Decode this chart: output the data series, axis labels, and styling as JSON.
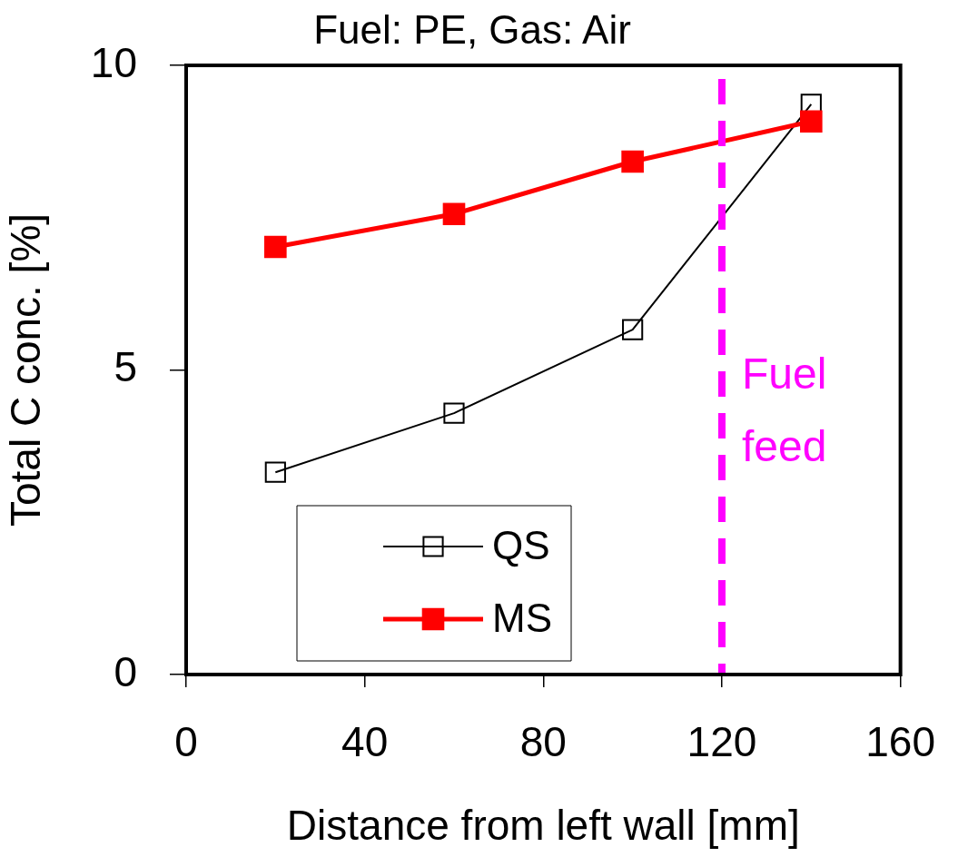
{
  "chart_data": {
    "type": "line",
    "title": "Fuel: PE, Gas: Air",
    "xlabel": "Distance from left wall [mm]",
    "ylabel": "Total C conc. [%]",
    "x": [
      20,
      60,
      100,
      140
    ],
    "series": [
      {
        "name": "QS",
        "color": "#000000",
        "values": [
          3.32,
          4.29,
          5.66,
          9.36
        ]
      },
      {
        "name": "MS",
        "color": "#ff0000",
        "values": [
          7.02,
          7.56,
          8.42,
          9.08
        ]
      }
    ],
    "xlim": [
      0,
      160
    ],
    "xticks": [
      0,
      40,
      80,
      120,
      160
    ],
    "ylim": [
      0,
      10
    ],
    "yticks": [
      0,
      5,
      10
    ],
    "ref_lines": [
      {
        "axis": "x",
        "value": 120,
        "label": "Fuel\nfeed",
        "color": "#ff00ff",
        "line_style": "dashed"
      }
    ],
    "marker": "square",
    "legend": "bottom left",
    "grid": false
  }
}
